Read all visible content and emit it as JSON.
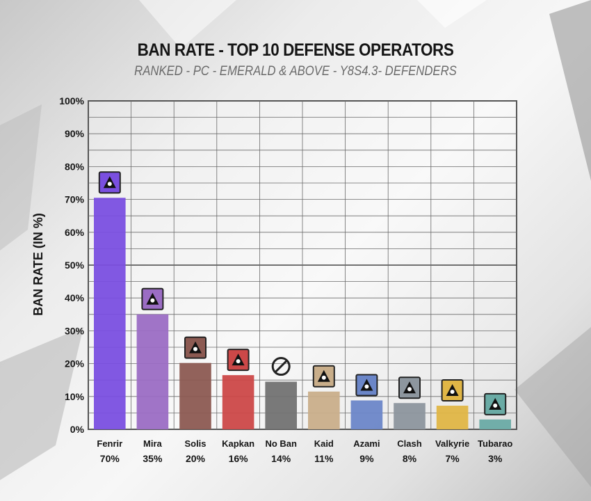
{
  "title": "BAN RATE - TOP 10 DEFENSE OPERATORS",
  "subtitle": "RANKED - PC - EMERALD & ABOVE - Y8S4.3- DEFENDERS",
  "chart_data": {
    "type": "bar",
    "title": "BAN RATE - TOP 10 DEFENSE OPERATORS",
    "subtitle": "RANKED - PC - EMERALD & ABOVE - Y8S4.3- DEFENDERS",
    "xlabel": "",
    "ylabel": "BAN RATE (IN %)",
    "ylim": [
      0,
      100
    ],
    "yticks": [
      "0%",
      "10%",
      "20%",
      "30%",
      "40%",
      "50%",
      "60%",
      "70%",
      "80%",
      "90%",
      "100%"
    ],
    "grid": true,
    "categories": [
      "Fenrir",
      "Mira",
      "Solis",
      "Kapkan",
      "No Ban",
      "Kaid",
      "Azami",
      "Clash",
      "Valkyrie",
      "Tubarao"
    ],
    "values": [
      70.5,
      35,
      20.2,
      16.5,
      14.5,
      11.5,
      8.8,
      8,
      7.2,
      3
    ],
    "value_labels": [
      "70%",
      "35%",
      "20%",
      "16%",
      "14%",
      "11%",
      "9%",
      "8%",
      "7%",
      "3%"
    ],
    "colors": [
      "#7a4fe0",
      "#9b6dc4",
      "#8c5a52",
      "#cc4848",
      "#727272",
      "#c9ae8a",
      "#6b86c8",
      "#8d969e",
      "#e0b646",
      "#6aaba5"
    ],
    "icons": [
      "fenrir-icon",
      "mira-icon",
      "solis-icon",
      "kapkan-icon",
      "no-ban-icon",
      "kaid-icon",
      "azami-icon",
      "clash-icon",
      "valkyrie-icon",
      "tubarao-icon"
    ]
  }
}
